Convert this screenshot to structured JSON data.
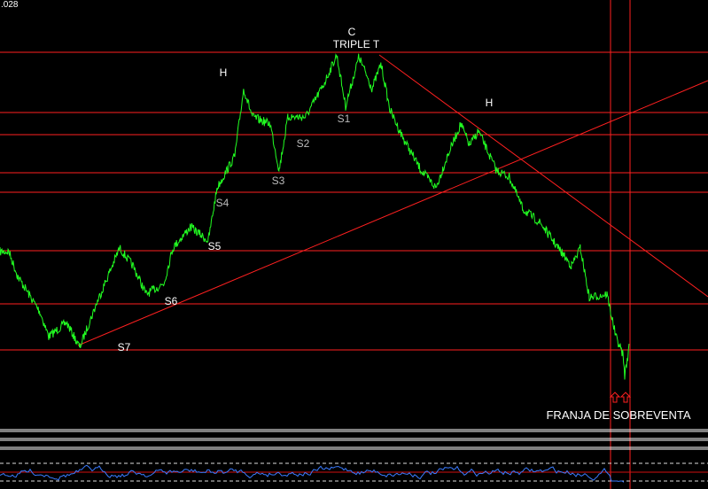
{
  "top_label": ".028",
  "colors": {
    "price": "#22ff22",
    "levels": "#ff2020",
    "oscillator": "#3a7bff",
    "background": "#000000",
    "text": "#ffffff"
  },
  "chart_data": {
    "type": "line",
    "title": "",
    "grid": false,
    "series": [
      {
        "x": [
          0,
          10,
          20,
          45,
          55,
          75,
          90,
          110,
          135,
          150,
          165,
          185,
          195,
          215,
          235,
          245,
          265,
          275,
          285,
          305,
          315,
          325,
          345,
          365,
          380,
          390,
          405,
          420,
          430,
          440,
          455,
          475,
          492,
          505,
          520,
          530,
          540,
          560,
          575,
          590,
          610,
          630,
          645,
          655,
          665,
          685,
          695,
          703,
          705,
          710
        ],
        "values": [
          34,
          34,
          27,
          17,
          10,
          14,
          7,
          20,
          35,
          30,
          22,
          25,
          35,
          41,
          37,
          52,
          61,
          80,
          72,
          70,
          57,
          72,
          72,
          81,
          89.5,
          75,
          89,
          80,
          87,
          74,
          66,
          57,
          52,
          61,
          70,
          64,
          68,
          57,
          55,
          46,
          42,
          35,
          30,
          35,
          21,
          22,
          10,
          5,
          -1,
          7
        ]
      }
    ],
    "levels": [
      90.25,
      73.25,
      67,
      56.25,
      50.75,
      34.25,
      19.25,
      6.25
    ],
    "annotations": {
      "c": "C",
      "triple_t": "TRIPLE T",
      "h1": "H",
      "h2": "H",
      "s1": "S1",
      "s2": "S2",
      "s3": "S3",
      "s4": "S4",
      "s5": "S5",
      "s6": "S6",
      "s7": "S7",
      "oversold": "FRANJA DE SOBREVENTA"
    }
  }
}
